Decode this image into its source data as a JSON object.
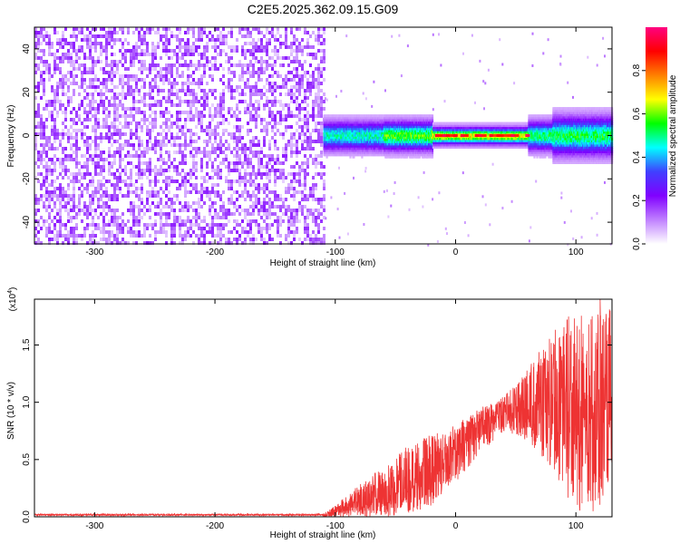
{
  "figure_title": "C2E5.2025.362.09.15.G09",
  "chart_data": [
    {
      "type": "heatmap",
      "title": "",
      "xlabel": "Height of straight line (km)",
      "ylabel": "Frequency (Hz)",
      "xlim": [
        -350,
        130
      ],
      "ylim": [
        -50,
        50
      ],
      "xticks": [
        -300,
        -200,
        -100,
        0,
        100
      ],
      "yticks": [
        -40,
        -20,
        0,
        20,
        40
      ],
      "colorbar": {
        "label": "Normalized spectral amplitude",
        "range": [
          0,
          1
        ],
        "ticks": [
          "0.0",
          "0.2",
          "0.4",
          "0.6",
          "0.8"
        ],
        "tick_values": [
          0,
          0.2,
          0.4,
          0.6,
          0.8
        ],
        "colors": [
          "#ffffff",
          "#c080ff",
          "#8000ff",
          "#4040ff",
          "#00ffff",
          "#00ff00",
          "#ffff00",
          "#ff8000",
          "#ff0000",
          "#ff0080"
        ]
      },
      "regions": [
        {
          "x_range": [
            -350,
            -110
          ],
          "frequency_range": [
            -50,
            50
          ],
          "amplitude_range": [
            0.02,
            0.15
          ],
          "description_level": "noise"
        },
        {
          "x_range": [
            -110,
            130
          ],
          "frequency_center": 0,
          "frequency_halfwidth": 6,
          "amplitude_range": [
            0.1,
            1.0
          ]
        }
      ],
      "peak_line": {
        "x_range": [
          -20,
          60
        ],
        "frequency": 0,
        "amplitude": 1.0
      }
    },
    {
      "type": "line",
      "title": "",
      "xlabel": "Height of straight line (km)",
      "ylabel": "SNR (10 * v/v)",
      "y_multiplier": "(x10^4)",
      "xlim": [
        -350,
        130
      ],
      "ylim": [
        0,
        1.9
      ],
      "xticks": [
        -300,
        -200,
        -100,
        0,
        100
      ],
      "yticks": [
        "0.0",
        "0.5",
        "1.0",
        "1.5"
      ],
      "ytick_values": [
        0,
        0.5,
        1.0,
        1.5
      ],
      "series": [
        {
          "color": "#ee3333",
          "envelope": {
            "x": [
              -350,
              -110,
              -100,
              -80,
              -60,
              -40,
              -20,
              0,
              20,
              40,
              60,
              80,
              100,
              120,
              130
            ],
            "mean": [
              0.01,
              0.01,
              0.05,
              0.12,
              0.18,
              0.25,
              0.38,
              0.6,
              0.82,
              0.92,
              0.95,
              1.0,
              0.95,
              0.9,
              0.9
            ],
            "max": [
              0.03,
              0.03,
              0.1,
              0.28,
              0.45,
              0.62,
              0.72,
              0.8,
              0.95,
              1.05,
              1.3,
              1.6,
              1.85,
              1.9,
              1.8
            ],
            "min": [
              0.0,
              0.0,
              0.0,
              0.0,
              0.0,
              0.02,
              0.1,
              0.3,
              0.55,
              0.75,
              0.65,
              0.4,
              0.05,
              0.02,
              0.3
            ]
          }
        }
      ]
    }
  ]
}
